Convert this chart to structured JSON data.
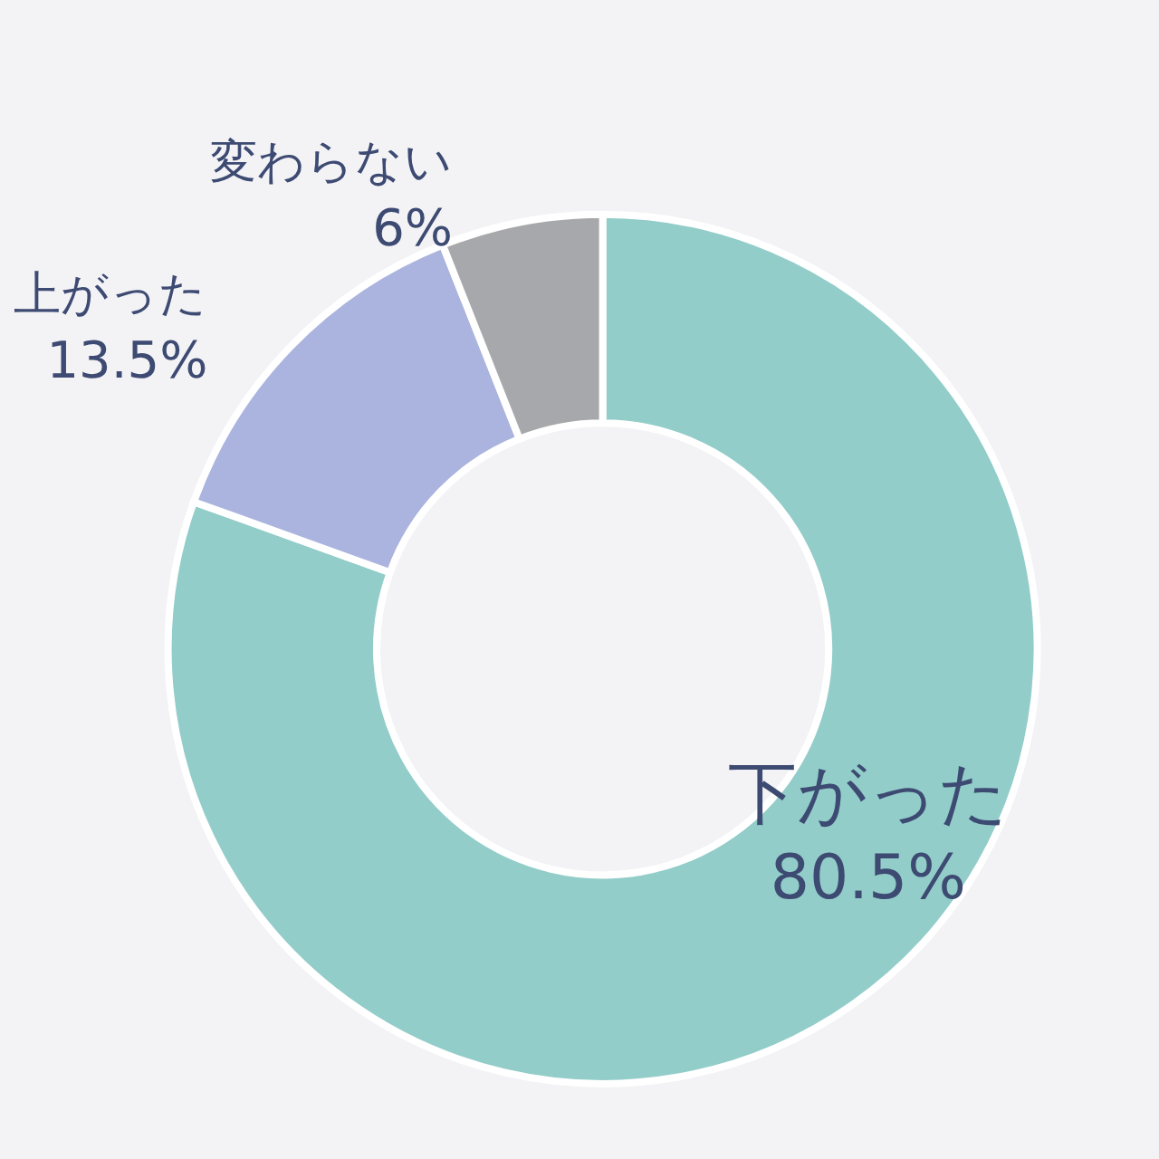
{
  "chart_data": {
    "type": "donut",
    "categories": [
      "下がった",
      "上がった",
      "変わらない"
    ],
    "values": [
      80.5,
      13.5,
      6
    ],
    "colors": [
      "#92cdc9",
      "#aab4de",
      "#a7a8ab"
    ],
    "value_labels": [
      "80.5%",
      "13.5%",
      "6%"
    ],
    "legend": false
  }
}
